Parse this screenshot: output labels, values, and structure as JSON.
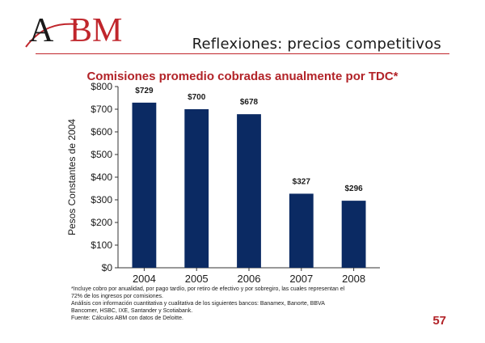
{
  "slide": {
    "logo_text_a": "A",
    "logo_text_b": "BM",
    "title": "Reflexiones: precios competitivos",
    "page_number": "57"
  },
  "footnote": {
    "lines": [
      "*Incluye cobro por anualidad, por pago tardío, por retiro de efectivo y por sobregiro, las cuales representan el",
      "72% de los ingresos por comisiones.",
      "Análisis con información cuantitativa y cualitativa de los siguientes bancos: Banamex, Banorte, BBVA",
      "Bancomer, HSBC, IXE, Santander y Scotiabank.",
      "Fuente: Cálculos ABM con datos de Deloitte."
    ]
  },
  "colors": {
    "accent": "#b22328",
    "bar": "#0b2a63",
    "text": "#1a1a1a"
  },
  "chart_data": {
    "type": "bar",
    "title": "Comisiones promedio cobradas anualmente por TDC*",
    "xlabel": "",
    "ylabel": "Pesos Constantes de 2004",
    "categories": [
      "2004",
      "2005",
      "2006",
      "2007",
      "2008"
    ],
    "values": [
      729,
      700,
      678,
      327,
      296
    ],
    "data_labels": [
      "$729",
      "$700",
      "$678",
      "$327",
      "$296"
    ],
    "ylim": [
      0,
      800
    ],
    "yticks": [
      0,
      100,
      200,
      300,
      400,
      500,
      600,
      700,
      800
    ],
    "ytick_labels": [
      "$0",
      "$100",
      "$200",
      "$300",
      "$400",
      "$500",
      "$600",
      "$700",
      "$800"
    ],
    "grid": false,
    "legend": "none"
  }
}
